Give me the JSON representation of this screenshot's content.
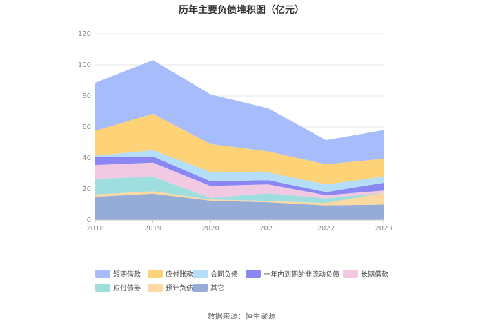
{
  "chart_data": {
    "type": "area",
    "stacked": true,
    "title": "历年主要负债堆积图（亿元）",
    "x": [
      "2018",
      "2019",
      "2020",
      "2021",
      "2022",
      "2023"
    ],
    "ylim": [
      0,
      120
    ],
    "yticks": [
      0,
      20,
      40,
      60,
      80,
      100,
      120
    ],
    "grid": true,
    "legend_position": "bottom",
    "series": [
      {
        "name": "其它",
        "color": "#94acd6",
        "values": [
          15,
          17,
          12.5,
          11.5,
          9.5,
          10
        ]
      },
      {
        "name": "预计负债",
        "color": "#fcd9a1",
        "values": [
          1.5,
          1.5,
          0.8,
          0.8,
          1.5,
          7.5
        ]
      },
      {
        "name": "应付债券",
        "color": "#9fdede",
        "values": [
          10,
          9.5,
          1,
          5,
          3,
          0
        ]
      },
      {
        "name": "长期借款",
        "color": "#f1c9e3",
        "values": [
          9,
          9,
          7.7,
          5.7,
          2,
          1.5
        ]
      },
      {
        "name": "一年内到期的非流动负债",
        "color": "#8a86f2",
        "values": [
          5.5,
          4,
          3,
          2.7,
          2,
          5
        ]
      },
      {
        "name": "合同负债",
        "color": "#b5dff9",
        "values": [
          0.5,
          4,
          6,
          5,
          5,
          4
        ]
      },
      {
        "name": "应付账款",
        "color": "#fed277",
        "values": [
          16,
          23.5,
          18,
          13.5,
          13,
          11.5
        ]
      },
      {
        "name": "短期借款",
        "color": "#a7bdfb",
        "values": [
          31,
          34.5,
          32,
          27.8,
          15.5,
          18.5
        ]
      }
    ],
    "legend_order": [
      "短期借款",
      "应付账款",
      "合同负债",
      "一年内到期的非流动负债",
      "长期借款",
      "应付债券",
      "预计负债",
      "其它"
    ]
  },
  "footer": {
    "source": "数据来源：恒生聚源"
  }
}
